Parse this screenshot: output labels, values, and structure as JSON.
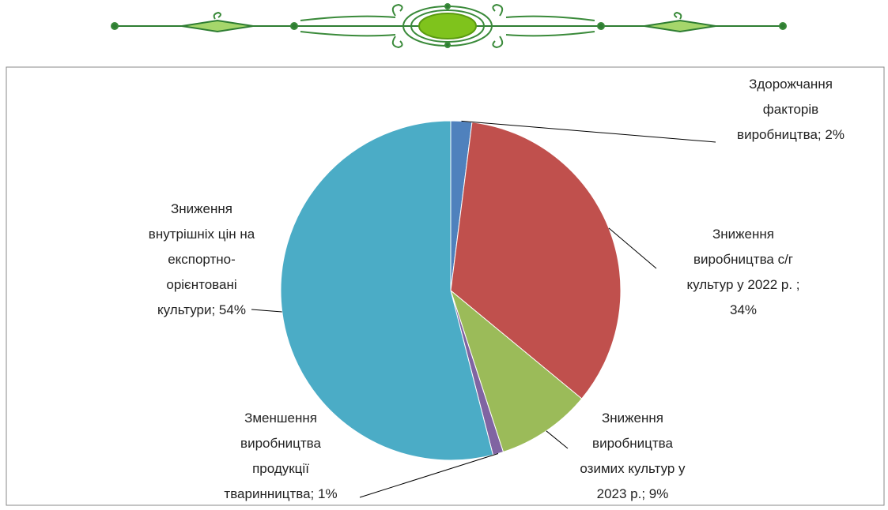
{
  "chart_data": {
    "type": "pie",
    "values": [
      2,
      34,
      9,
      1,
      54
    ],
    "value_labels": [
      "Здорожчання\nфакторів\nвиробництва; 2%",
      "Зниження\nвиробництва с/г\nкультур у 2022 р. ;\n34%",
      "Зниження\nвиробництва\nозимих культур у\n2023 р.; 9%",
      "Зменшення\nвиробництва\nпродукції\nтваринництва; 1%",
      "Зниження\nвнутрішніх цін на\nекспортно-\nорієнтовані\nкультури; 54%"
    ],
    "colors": [
      "#4f81bd",
      "#c0504d",
      "#9bbb59",
      "#8064a2",
      "#4bacc6"
    ]
  }
}
